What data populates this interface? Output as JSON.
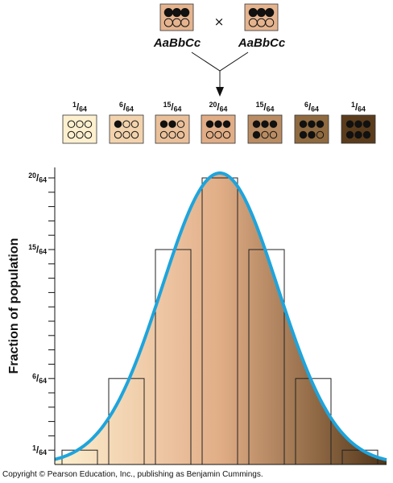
{
  "cross": {
    "parent_left": "AaBbCc",
    "parent_right": "AaBbCc",
    "symbol": "×",
    "parent_color": "#e5b48f"
  },
  "offspring": [
    {
      "num": "1",
      "den": "64",
      "dark_alleles": 0,
      "color": "#fdf0cf"
    },
    {
      "num": "6",
      "den": "64",
      "dark_alleles": 1,
      "color": "#f2d3ad"
    },
    {
      "num": "15",
      "den": "64",
      "dark_alleles": 2,
      "color": "#eac09a"
    },
    {
      "num": "20",
      "den": "64",
      "dark_alleles": 3,
      "color": "#e0ad86"
    },
    {
      "num": "15",
      "den": "64",
      "dark_alleles": 4,
      "color": "#b98c63"
    },
    {
      "num": "6",
      "den": "64",
      "dark_alleles": 5,
      "color": "#8f6a40"
    },
    {
      "num": "1",
      "den": "64",
      "dark_alleles": 6,
      "color": "#5a3c1c"
    }
  ],
  "chart": {
    "ylabel": "Fraction of population",
    "y_tick_labels": [
      {
        "num": "1",
        "den": "64",
        "value": 1
      },
      {
        "num": "6",
        "den": "64",
        "value": 6
      },
      {
        "num": "15",
        "den": "64",
        "value": 15
      },
      {
        "num": "20",
        "den": "64",
        "value": 20
      }
    ],
    "curve_color": "#1ea4dc",
    "gradient": [
      "#fdf0cf",
      "#ecc29f",
      "#e0ad86",
      "#8c6642",
      "#4f3418"
    ]
  },
  "chart_data": {
    "type": "bar",
    "categories": [
      "0",
      "1",
      "2",
      "3",
      "4",
      "5",
      "6"
    ],
    "values": [
      1,
      6,
      15,
      20,
      15,
      6,
      1
    ],
    "ylabel": "Fraction of population",
    "ylim": [
      0,
      20
    ],
    "grid": false
  },
  "copyright": "Copyright © Pearson Education, Inc., publishing as Benjamin Cummings."
}
